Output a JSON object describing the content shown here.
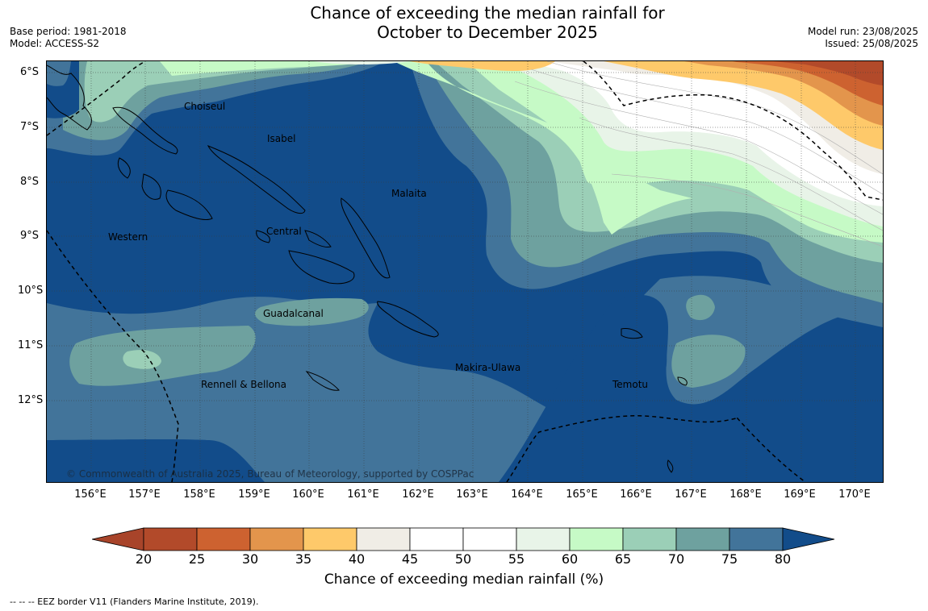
{
  "title": {
    "line1": "Chance of exceeding the median rainfall for",
    "line2": "October to December 2025"
  },
  "meta": {
    "base_period": "Base period: 1981-2018",
    "model": "Model: ACCESS-S2",
    "model_run": "Model run: 23/08/2025",
    "issued": "Issued: 25/08/2025"
  },
  "map": {
    "latitude_labels": [
      "6°S",
      "7°S",
      "8°S",
      "9°S",
      "10°S",
      "11°S",
      "12°S"
    ],
    "longitude_labels": [
      "156°E",
      "157°E",
      "158°E",
      "159°E",
      "160°E",
      "161°E",
      "162°E",
      "163°E",
      "164°E",
      "165°E",
      "166°E",
      "167°E",
      "168°E",
      "169°E",
      "170°E"
    ],
    "regions": {
      "choiseul": "Choiseul",
      "isabel": "Isabel",
      "malaita": "Malaita",
      "western": "Western",
      "central": "Central",
      "guadalcanal": "Guadalcanal",
      "rennell": "Rennell & Bellona",
      "makira": "Makira-Ulawa",
      "temotu": "Temotu"
    },
    "copyright": "© Commonwealth of Australia 2025, Bureau of Meteorology, supported by COSPPac"
  },
  "colorbar": {
    "ticks": [
      "20",
      "25",
      "30",
      "35",
      "40",
      "45",
      "50",
      "55",
      "60",
      "65",
      "70",
      "75",
      "80"
    ],
    "colors": [
      "#a8442a",
      "#b24a2a",
      "#cd6230",
      "#e3954c",
      "#fec96a",
      "#f0ede6",
      "#ffffff",
      "#ffffff",
      "#e8f4e8",
      "#c6fac6",
      "#9bcfb7",
      "#6ea19f",
      "#42749a",
      "#124c8a"
    ],
    "label": "Chance of exceeding median rainfall (%)"
  },
  "footer": {
    "legend": "--  --  -- EEZ border V11 (Flanders Marine Institute, 2019)."
  }
}
